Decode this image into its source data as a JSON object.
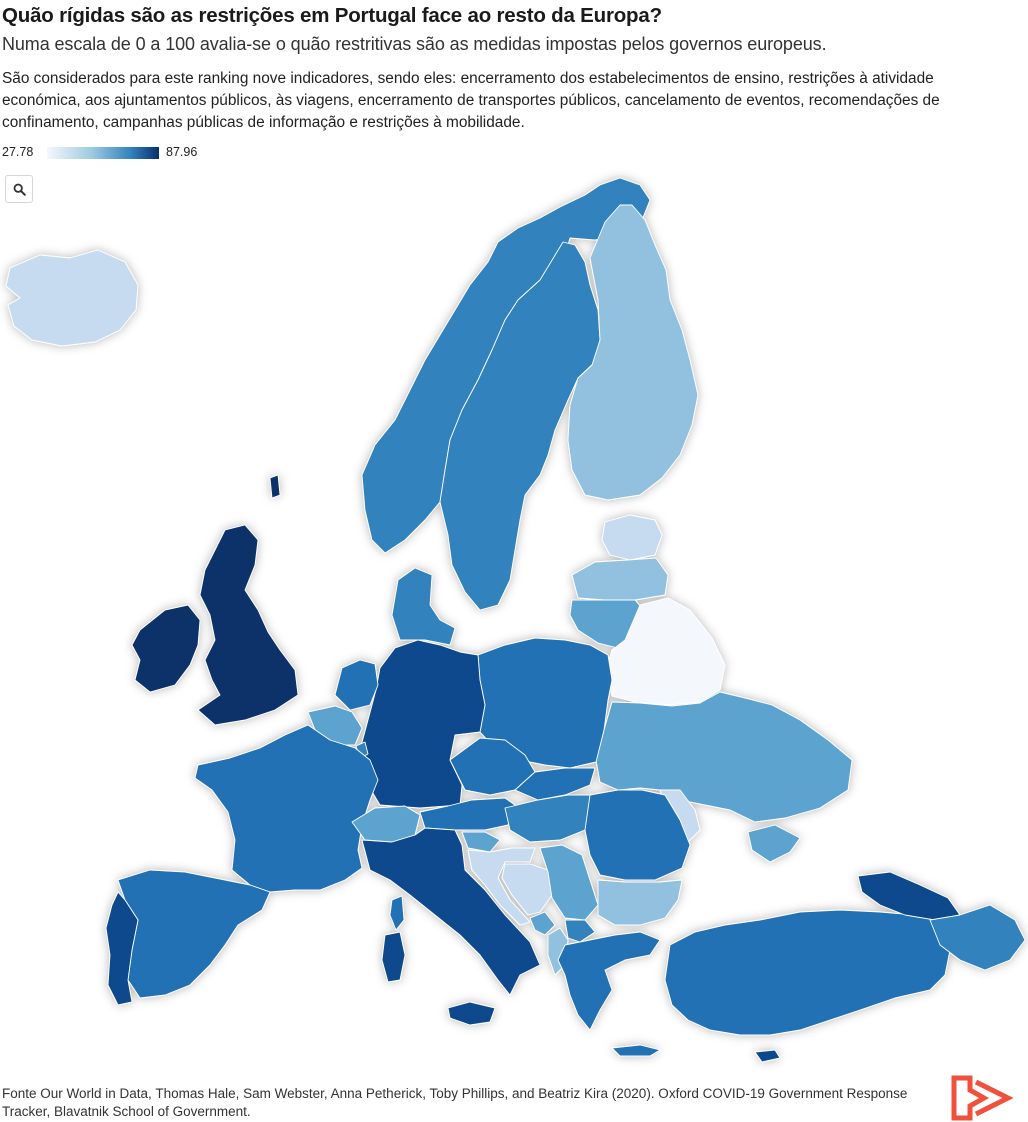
{
  "header": {
    "title": "Quão rígidas são as restrições em Portugal face ao resto da Europa?",
    "subtitle": "Numa escala de 0 a 100 avalia-se o quão restritivas são as medidas impostas pelos governos europeus.",
    "description": "São considerados para este ranking nove indicadores, sendo eles: encerramento dos estabelecimentos de ensino, restrições à atividade económica, aos ajuntamentos públicos, às viagens, encerramento de transportes públicos, cancelamento de eventos, recomendações de confinamento, campanhas públicas de informação e restrições à mobilidade."
  },
  "legend": {
    "min": "27.78",
    "max": "87.96"
  },
  "controls": {
    "zoom_icon": "magnifier-icon"
  },
  "colors": {
    "darkest": "#08306b",
    "dark": "#0b4a8c",
    "mid_dark": "#2171b5",
    "mid": "#3182bd",
    "mid_light": "#5ba3d0",
    "light": "#92c1e0",
    "lighter": "#c6dbef",
    "lightest": "#f4f8fd",
    "border": "#ffffff"
  },
  "footer": {
    "source": "Fonte Our World in Data, Thomas Hale, Sam Webster, Anna Petherick, Toby Phillips, and Beatriz Kira (2020). Oxford COVID-19 Government Response Tracker, Blavatnik School of Government."
  },
  "brand": {
    "logo_icon": "play-arrow-logo-icon",
    "color": "#f0503c"
  }
}
